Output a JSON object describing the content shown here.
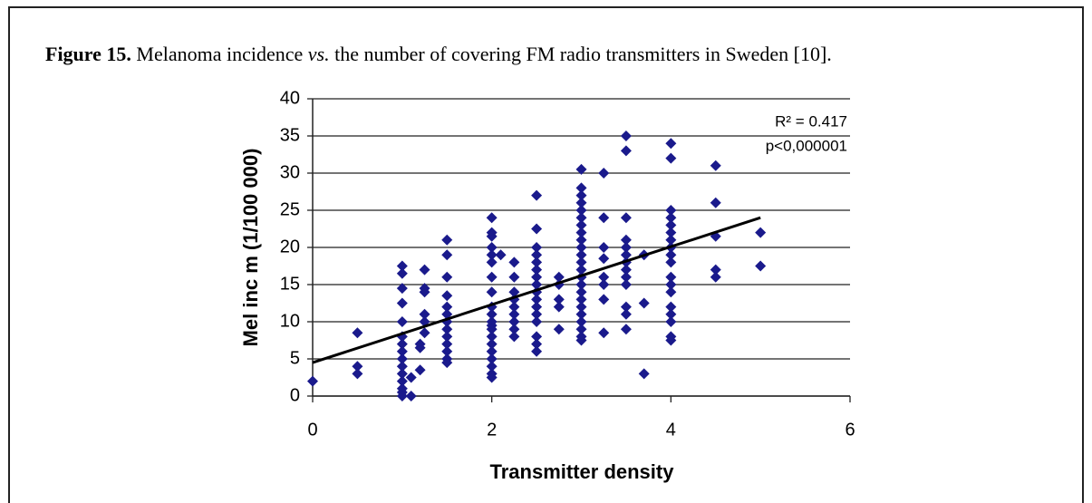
{
  "figure_label": "Figure 15.",
  "caption_before": "Melanoma incidence",
  "caption_italic": "vs.",
  "caption_after": "the number of covering FM radio transmitters in Sweden [10].",
  "chart_data": {
    "type": "scatter",
    "xlabel": "Transmitter density",
    "ylabel": "Mel inc m (1/100 000)",
    "annotations": [
      "R² = 0.417",
      "p<0,000001"
    ],
    "color": "#1a1a8c",
    "xlim": [
      0,
      6
    ],
    "xticks": [
      0,
      2,
      4,
      6
    ],
    "ylim": [
      0,
      40
    ],
    "yticks": [
      0,
      5,
      10,
      15,
      20,
      25,
      30,
      35,
      40
    ],
    "grid": true,
    "trendline": {
      "x": [
        0,
        5
      ],
      "y": [
        4.5,
        24
      ]
    },
    "x": [
      0,
      0.5,
      0.5,
      0.5,
      1,
      1,
      1,
      1,
      1,
      1,
      1,
      1,
      1,
      1,
      1,
      1,
      1,
      1,
      1,
      1.1,
      1.1,
      1.2,
      1.2,
      1.2,
      1.25,
      1.25,
      1.25,
      1.25,
      1.25,
      1.25,
      1.5,
      1.5,
      1.5,
      1.5,
      1.5,
      1.5,
      1.5,
      1.5,
      1.5,
      1.5,
      1.5,
      1.5,
      1.5,
      2,
      2,
      2,
      2,
      2,
      2,
      2,
      2,
      2,
      2,
      2,
      2,
      2,
      2,
      2,
      2,
      2,
      2,
      2,
      2,
      2.1,
      2.25,
      2.25,
      2.25,
      2.25,
      2.25,
      2.25,
      2.25,
      2.25,
      2.25,
      2.5,
      2.5,
      2.5,
      2.5,
      2.5,
      2.5,
      2.5,
      2.5,
      2.5,
      2.5,
      2.5,
      2.5,
      2.5,
      2.5,
      2.5,
      2.5,
      2.75,
      2.75,
      2.75,
      2.75,
      2.75,
      3,
      3,
      3,
      3,
      3,
      3,
      3,
      3,
      3,
      3,
      3,
      3,
      3,
      3,
      3,
      3,
      3,
      3,
      3,
      3,
      3,
      3,
      3,
      3.25,
      3.25,
      3.25,
      3.25,
      3.25,
      3.25,
      3.25,
      3.25,
      3.5,
      3.5,
      3.5,
      3.5,
      3.5,
      3.5,
      3.5,
      3.5,
      3.5,
      3.5,
      3.5,
      3.5,
      3.5,
      3.7,
      3.7,
      3.7,
      4,
      4,
      4,
      4,
      4,
      4,
      4,
      4,
      4,
      4,
      4,
      4,
      4,
      4,
      4,
      4,
      4,
      4,
      4.5,
      4.5,
      4.5,
      4.5,
      4.5,
      5,
      5
    ],
    "y": [
      2,
      8.5,
      4,
      3,
      17.5,
      16.5,
      14.5,
      12.5,
      10,
      8,
      7,
      6,
      5,
      4,
      3,
      2,
      1,
      0.5,
      0,
      2.5,
      0,
      3.5,
      6.5,
      7,
      17,
      14.5,
      14,
      11,
      10,
      8.5,
      21,
      19,
      16,
      13.5,
      12,
      11,
      10,
      9,
      8,
      7,
      6,
      5,
      4.5,
      24,
      22,
      21.5,
      20,
      19,
      18,
      16,
      14,
      12,
      11,
      10,
      9.5,
      9,
      8,
      7,
      6,
      5,
      4,
      3,
      2.5,
      19,
      18,
      16,
      14,
      13,
      12,
      11,
      10,
      9,
      8,
      27,
      22.5,
      20,
      19,
      18,
      17,
      16,
      15,
      14,
      13,
      12,
      11,
      10,
      8,
      7,
      6,
      16,
      15,
      13,
      12,
      9,
      30.5,
      28,
      27,
      26,
      25,
      24,
      23,
      22,
      21,
      20,
      19,
      18,
      17,
      16,
      15,
      14,
      13,
      12,
      11,
      10,
      9,
      8,
      7.5,
      30,
      24,
      20,
      18.5,
      16,
      15,
      13,
      8.5,
      35,
      33,
      24,
      21,
      20,
      19,
      18,
      17,
      16,
      15,
      12,
      11,
      9,
      19,
      12.5,
      3,
      34,
      32,
      25,
      24,
      23,
      22,
      21,
      20,
      19,
      18,
      16,
      15,
      14,
      12,
      11,
      10,
      8,
      7.5,
      31,
      26,
      21.5,
      17,
      16,
      22,
      17.5
    ]
  }
}
